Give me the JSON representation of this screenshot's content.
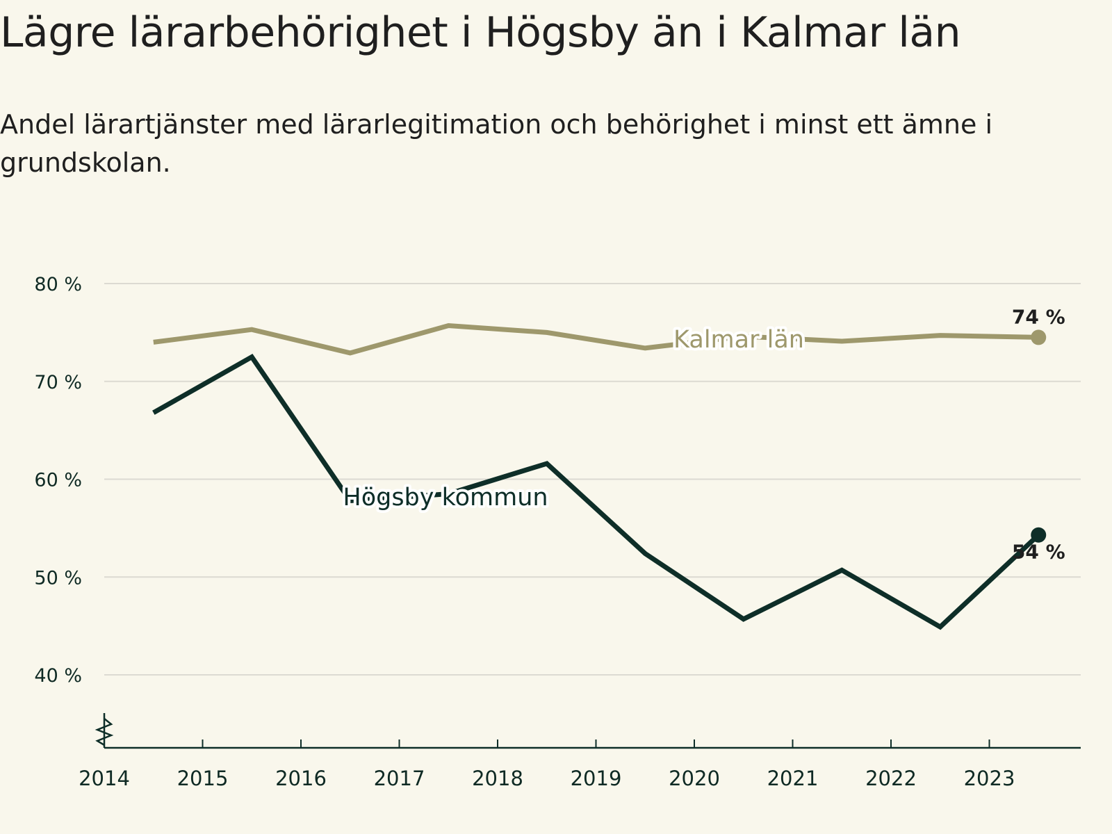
{
  "header": {
    "title": "Lägre lärarbehörighet i Högsby än i Kalmar län",
    "subtitle": "Andel lärartjänster med lärarlegitimation och behörighet i minst ett ämne i grundskolan."
  },
  "colors": {
    "kalmar": "#9e986c",
    "hogsby": "#0e2e28",
    "grid": "#dcdad2",
    "axis": "#0e2e28",
    "background": "#f9f7ec"
  },
  "chart_data": {
    "type": "line",
    "title": "Lägre lärarbehörighet i Högsby än i Kalmar län",
    "subtitle": "Andel lärartjänster med lärarlegitimation och behörighet i minst ett ämne i grundskolan.",
    "xlabel": "",
    "ylabel": "",
    "x": [
      2014.5,
      2015.5,
      2016.5,
      2017.5,
      2018.5,
      2019.5,
      2020.5,
      2021.5,
      2022.5,
      2023.5
    ],
    "x_ticks": [
      2014,
      2015,
      2016,
      2017,
      2018,
      2019,
      2020,
      2021,
      2022,
      2023
    ],
    "x_tick_labels": [
      "2014",
      "2015",
      "2016",
      "2017",
      "2018",
      "2019",
      "2020",
      "2021",
      "2022",
      "2023"
    ],
    "xlim": [
      2014,
      2024
    ],
    "ylim": [
      33,
      80
    ],
    "y_ticks": [
      40,
      50,
      60,
      70,
      80
    ],
    "y_tick_labels": [
      "40 %",
      "50 %",
      "60 %",
      "70 %",
      "80 %"
    ],
    "grid": true,
    "axis_break": true,
    "series": [
      {
        "id": "kalmar",
        "name": "Kalmar län",
        "values": [
          74.0,
          75.3,
          72.9,
          75.7,
          75.0,
          73.4,
          74.6,
          74.1,
          74.7,
          74.5
        ],
        "end_label": "74 %"
      },
      {
        "id": "hogsby",
        "name": "Högsby kommun",
        "values": [
          66.8,
          72.5,
          57.8,
          58.5,
          61.6,
          52.4,
          45.7,
          50.7,
          44.9,
          54.3
        ],
        "end_label": "54 %"
      }
    ]
  }
}
